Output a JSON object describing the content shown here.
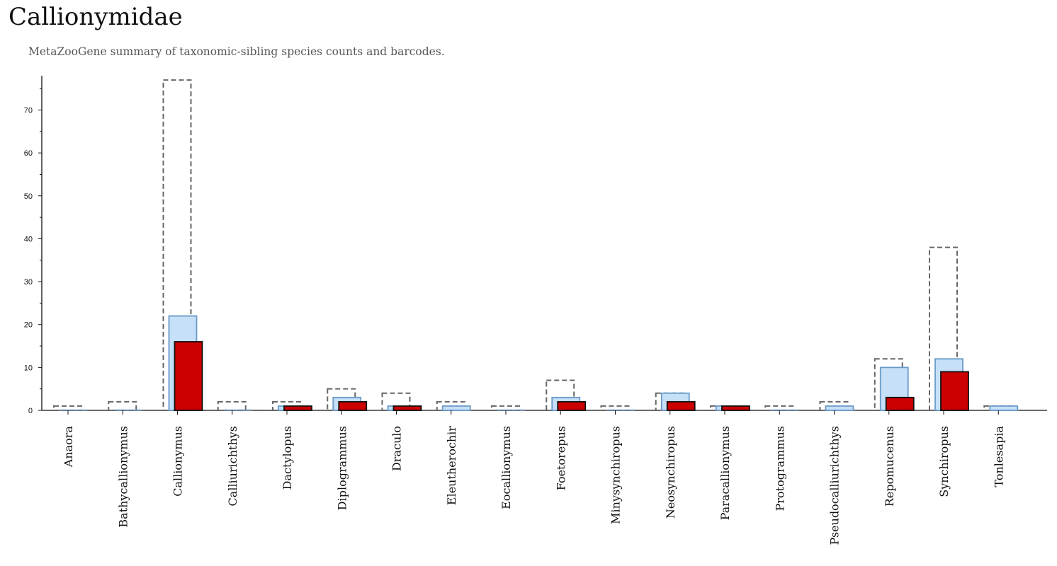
{
  "header": {
    "title": "Callionymidae",
    "subtitle": "MetaZooGene summary of taxonomic-sibling species counts and barcodes."
  },
  "colors": {
    "total": "#666666",
    "sequenced": "#c6e0f7",
    "sequenced_stroke": "#6a9ac9",
    "barcodes": "#cc0000",
    "barcodes_stroke": "#111111"
  },
  "chart_data": {
    "type": "bar",
    "title": "Callionymidae",
    "subtitle": "MetaZooGene summary of taxonomic-sibling species counts and barcodes.",
    "xlabel": "",
    "ylabel": "",
    "ylim": [
      0,
      78
    ],
    "yticks": [
      0,
      10,
      20,
      30,
      40,
      50,
      60,
      70
    ],
    "grid": false,
    "legend": "none",
    "categories": [
      "Anaora",
      "Bathycallionymus",
      "Callionymus",
      "Calliurichthys",
      "Dactylopus",
      "Diplogrammus",
      "Draculo",
      "Eleutherochir",
      "Eocallionymus",
      "Foetorepus",
      "Minysynchiropus",
      "Neosynchiropus",
      "Paracallionymus",
      "Protogrammus",
      "Pseudocalliurichthys",
      "Repomucenus",
      "Synchiropus",
      "Tonlesapia"
    ],
    "series": [
      {
        "style": "dashed-outline",
        "values": [
          1,
          2,
          77,
          2,
          2,
          5,
          4,
          2,
          1,
          7,
          1,
          4,
          1,
          1,
          2,
          12,
          38,
          1
        ]
      },
      {
        "style": "light-blue",
        "values": [
          0,
          0,
          22,
          0,
          1,
          3,
          1,
          1,
          0,
          3,
          0,
          4,
          1,
          0,
          1,
          10,
          12,
          1
        ]
      },
      {
        "style": "red",
        "values": [
          0,
          0,
          16,
          0,
          1,
          2,
          1,
          0,
          0,
          2,
          0,
          2,
          1,
          0,
          0,
          3,
          9,
          0
        ]
      }
    ]
  }
}
